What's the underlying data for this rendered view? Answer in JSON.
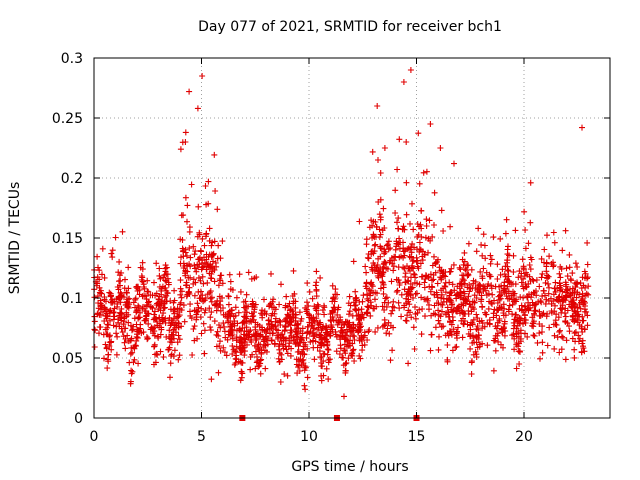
{
  "chart_data": {
    "type": "scatter",
    "title": "Day 077 of 2021, SRMTID for receiver bch1",
    "xlabel": "GPS time / hours",
    "ylabel": "SRMTID / TECUs",
    "xlim": [
      0,
      24
    ],
    "ylim": [
      0,
      0.3
    ],
    "x_ticks": [
      0,
      5,
      10,
      15,
      20
    ],
    "y_ticks": [
      0,
      0.05,
      0.1,
      0.15,
      0.2,
      0.25,
      0.3
    ],
    "x_tick_labels": [
      "0",
      "5",
      "10",
      "15",
      "20"
    ],
    "y_tick_labels": [
      "0",
      "0.05",
      "0.1",
      "0.15",
      "0.2",
      "0.25",
      "0.3"
    ],
    "grid": true,
    "marker": "+",
    "color": "#e00000",
    "data_extent_hours": [
      0,
      23
    ],
    "zero_markers_x": [
      6.9,
      11.3,
      15.0
    ],
    "series": [
      {
        "name": "SRMTID",
        "regimes": [
          {
            "x": [
              0.0,
              4.0
            ],
            "mean": 0.085,
            "spread": 0.03
          },
          {
            "x": [
              4.0,
              6.0
            ],
            "mean": 0.11,
            "spread": 0.05,
            "peaks": [
              0.258,
              0.238,
              0.285,
              0.272,
              0.23,
              0.224
            ]
          },
          {
            "x": [
              6.0,
              12.6
            ],
            "mean": 0.072,
            "spread": 0.025
          },
          {
            "x": [
              12.6,
              16.0
            ],
            "mean": 0.12,
            "spread": 0.045,
            "peaks": [
              0.29,
              0.28,
              0.26,
              0.245,
              0.225
            ]
          },
          {
            "x": [
              16.0,
              23.0
            ],
            "mean": 0.095,
            "spread": 0.035,
            "peaks": [
              0.242,
              0.225,
              0.212,
              0.196
            ]
          }
        ],
        "density_points_per_hour": 110
      }
    ]
  }
}
